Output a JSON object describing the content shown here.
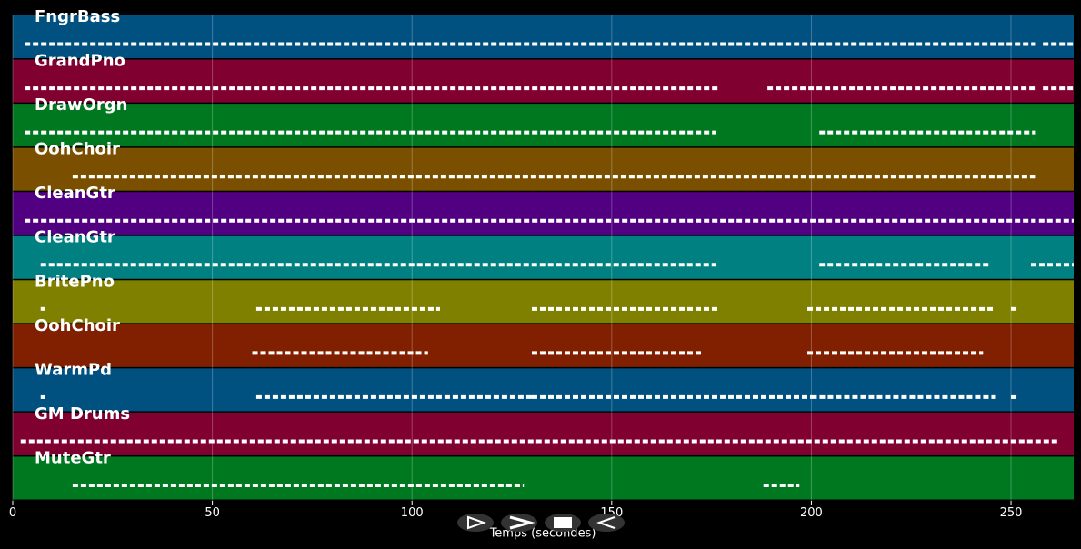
{
  "chart_data": {
    "type": "timeline",
    "xlabel": "Temps (secondes)",
    "xlim": [
      0,
      265.7
    ],
    "xticks": [
      0,
      50,
      100,
      150,
      200,
      250
    ],
    "grid": true,
    "series": [
      {
        "name": "FngrBass",
        "color": "#005080",
        "segments": [
          [
            3,
            256
          ],
          [
            258,
            265.7
          ]
        ]
      },
      {
        "name": "GrandPno",
        "color": "#800030",
        "segments": [
          [
            3,
            177
          ],
          [
            189,
            256
          ],
          [
            258,
            265.7
          ]
        ]
      },
      {
        "name": "DrawOrgn",
        "color": "#007820",
        "segments": [
          [
            3,
            176
          ],
          [
            202,
            256
          ]
        ]
      },
      {
        "name": "OohChoir",
        "color": "#7a5000",
        "segments": [
          [
            15,
            256
          ]
        ]
      },
      {
        "name": "CleanGtr",
        "color": "#500080",
        "segments": [
          [
            3,
            256
          ],
          [
            257,
            265.7
          ]
        ]
      },
      {
        "name": "CleanGtr",
        "color": "#008080",
        "segments": [
          [
            7,
            176
          ],
          [
            202,
            245
          ],
          [
            255,
            265.7
          ]
        ]
      },
      {
        "name": "BritePno",
        "color": "#808000",
        "segments": [
          [
            7,
            8
          ],
          [
            61,
            107
          ],
          [
            130,
            177
          ],
          [
            199,
            246
          ],
          [
            250,
            252
          ]
        ]
      },
      {
        "name": "OohChoir",
        "color": "#802000",
        "segments": [
          [
            60,
            104
          ],
          [
            130,
            173
          ],
          [
            199,
            243
          ]
        ]
      },
      {
        "name": "WarmPd",
        "color": "#005080",
        "segments": [
          [
            7,
            8
          ],
          [
            61,
            130
          ],
          [
            130,
            200
          ],
          [
            200,
            246
          ],
          [
            250,
            252
          ]
        ]
      },
      {
        "name": "GM Drums",
        "color": "#800030",
        "segments": [
          [
            2,
            262
          ]
        ]
      },
      {
        "name": "MuteGtr",
        "color": "#007820",
        "segments": [
          [
            15,
            128
          ],
          [
            188,
            197
          ]
        ]
      }
    ]
  }
}
